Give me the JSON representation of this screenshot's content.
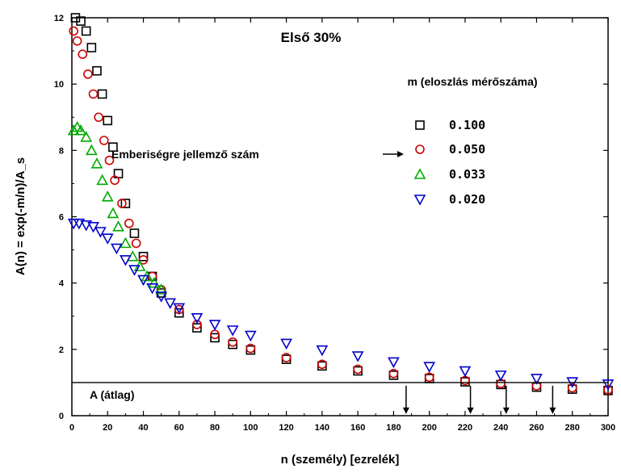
{
  "chart_data": {
    "type": "scatter",
    "title": "Első 30%",
    "xlabel": "n (személy) [ezrelék]",
    "ylabel": "A(n) = exp(-m/n)/A_s",
    "xlim": [
      0,
      300
    ],
    "ylim": [
      0,
      12
    ],
    "x_ticks": [
      0,
      20,
      40,
      60,
      80,
      100,
      120,
      140,
      160,
      180,
      200,
      220,
      240,
      260,
      280,
      300
    ],
    "y_ticks": [
      0,
      2,
      4,
      6,
      8,
      10,
      12
    ],
    "legend_title": "m (eloszlás mérőszáma)",
    "legend_position": "top-right",
    "annotation_humanity": "Emberiségre jellemző szám",
    "annotation_average": "A  (átlag)",
    "average_line_y": 1.0,
    "arrow_x": [
      187,
      223,
      243,
      269
    ],
    "series": [
      {
        "name": "0.100",
        "marker": "square",
        "color": "#000000",
        "x": [
          2,
          5,
          8,
          11,
          14,
          17,
          20,
          23,
          26,
          30,
          35,
          40,
          45,
          50,
          60,
          70,
          80,
          90,
          100,
          120,
          140,
          160,
          180,
          200,
          220,
          240,
          260,
          280,
          300
        ],
        "y": [
          12.0,
          11.9,
          11.6,
          11.1,
          10.4,
          9.7,
          8.9,
          8.1,
          7.3,
          6.4,
          5.5,
          4.8,
          4.2,
          3.7,
          3.1,
          2.65,
          2.35,
          2.15,
          1.98,
          1.7,
          1.5,
          1.35,
          1.22,
          1.12,
          1.02,
          0.94,
          0.86,
          0.8,
          0.76
        ]
      },
      {
        "name": "0.050",
        "marker": "circle",
        "color": "#cc0000",
        "x": [
          1,
          3,
          6,
          9,
          12,
          15,
          18,
          21,
          24,
          28,
          32,
          36,
          40,
          45,
          50,
          60,
          70,
          80,
          90,
          100,
          120,
          140,
          160,
          180,
          200,
          220,
          240,
          260,
          280,
          300
        ],
        "y": [
          11.6,
          11.3,
          10.9,
          10.3,
          9.7,
          9.0,
          8.3,
          7.7,
          7.1,
          6.4,
          5.8,
          5.2,
          4.7,
          4.2,
          3.8,
          3.2,
          2.75,
          2.45,
          2.22,
          2.03,
          1.75,
          1.55,
          1.4,
          1.27,
          1.16,
          1.06,
          0.97,
          0.9,
          0.84,
          0.78
        ]
      },
      {
        "name": "0.033",
        "marker": "triangle-up",
        "color": "#00aa00",
        "x": [
          1,
          3,
          5,
          8,
          11,
          14,
          17,
          20,
          23,
          26,
          30,
          34,
          38,
          42,
          46,
          50
        ],
        "y": [
          8.6,
          8.7,
          8.6,
          8.4,
          8.0,
          7.6,
          7.1,
          6.6,
          6.1,
          5.7,
          5.2,
          4.8,
          4.5,
          4.2,
          4.0,
          3.8
        ]
      },
      {
        "name": "0.020",
        "marker": "triangle-down",
        "color": "#0000cc",
        "x": [
          1,
          4,
          8,
          12,
          16,
          20,
          25,
          30,
          35,
          40,
          45,
          50,
          55,
          60,
          70,
          80,
          90,
          100,
          120,
          140,
          160,
          180,
          200,
          220,
          240,
          260,
          280,
          300
        ],
        "y": [
          5.8,
          5.8,
          5.75,
          5.7,
          5.55,
          5.35,
          5.05,
          4.7,
          4.4,
          4.1,
          3.85,
          3.6,
          3.4,
          3.25,
          2.95,
          2.75,
          2.58,
          2.42,
          2.18,
          1.98,
          1.8,
          1.62,
          1.48,
          1.35,
          1.22,
          1.12,
          1.02,
          0.95
        ]
      }
    ]
  }
}
